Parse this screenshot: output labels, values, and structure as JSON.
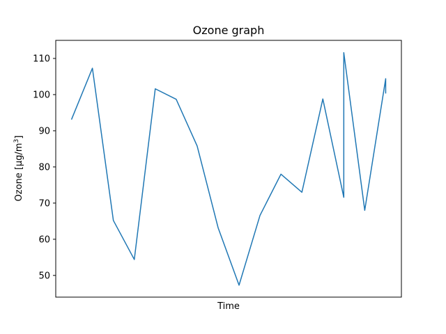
{
  "chart_data": {
    "type": "line",
    "title": "Ozone graph",
    "xlabel": "Time",
    "ylabel": "Ozone [µg/m",
    "ylabel_superscript": "3",
    "ylabel_suffix": "]",
    "ylim": [
      44,
      115
    ],
    "xlim": [
      -0.75,
      15.75
    ],
    "y_ticks": [
      50,
      60,
      70,
      80,
      90,
      100,
      110
    ],
    "x_ticks_visible": false,
    "grid": false,
    "legend": "none",
    "series": [
      {
        "color": "#1f77b4",
        "x": [
          0,
          1,
          2,
          3,
          4,
          5,
          6,
          7,
          8,
          9,
          10,
          11,
          12,
          13,
          13,
          14,
          15,
          15
        ],
        "y": [
          93.1,
          107.3,
          65.2,
          54.4,
          101.6,
          98.7,
          85.8,
          63.2,
          47.3,
          66.6,
          78.0,
          73.0,
          98.8,
          71.6,
          111.6,
          68.0,
          104.4,
          100.3
        ]
      }
    ]
  }
}
